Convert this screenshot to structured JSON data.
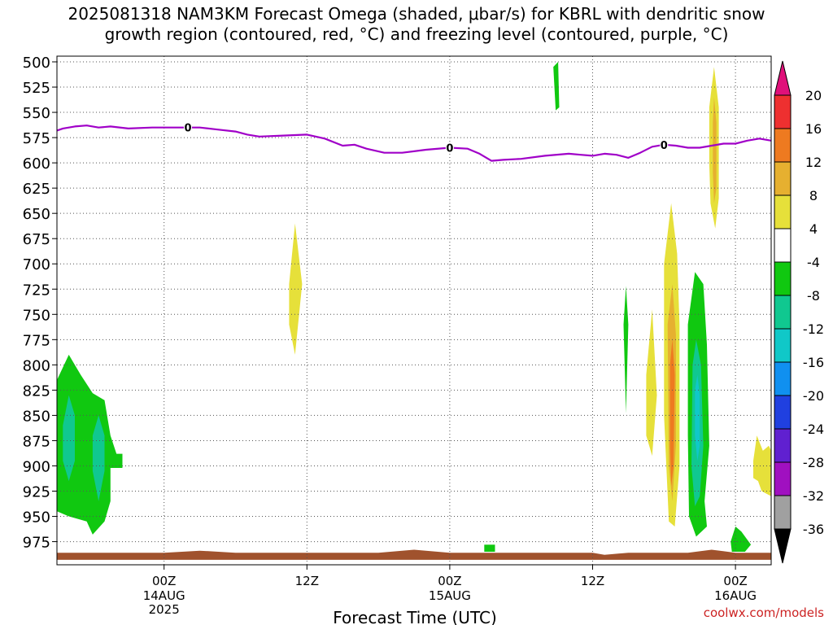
{
  "title_line1": "2025081318 NAM3KM Forecast Omega (shaded, μbar/s) for KBRL with dendritic snow",
  "title_line2": "growth region (contoured, red, °C) and freezing level (contoured, purple, °C)",
  "credit": "coolwx.com/models",
  "chart_data": {
    "type": "heatmap",
    "title": "2025081318 NAM3KM Forecast Omega (shaded, μbar/s) for KBRL with dendritic snow growth region (contoured, red, °C) and freezing level (contoured, purple, °C)",
    "xlabel": "Forecast Time (UTC)",
    "ylabel": "",
    "x_unit": "forecast hour from 2025081318",
    "xlim": [
      -3,
      57
    ],
    "ylim": [
      987,
      493
    ],
    "y_scale": "pressure (mb), inverted",
    "grid": true,
    "y_ticks": [
      500,
      525,
      550,
      575,
      600,
      625,
      650,
      675,
      700,
      725,
      750,
      775,
      800,
      825,
      850,
      875,
      900,
      925,
      950,
      975
    ],
    "x_ticks": [
      {
        "hour": 6,
        "label": "00Z",
        "sub": [
          "14AUG",
          "2025"
        ]
      },
      {
        "hour": 18,
        "label": "12Z",
        "sub": []
      },
      {
        "hour": 30,
        "label": "00Z",
        "sub": [
          "15AUG"
        ]
      },
      {
        "hour": 42,
        "label": "12Z",
        "sub": []
      },
      {
        "hour": 54,
        "label": "00Z",
        "sub": [
          "16AUG"
        ]
      }
    ],
    "freezing_level": {
      "color": "#a000c8",
      "label": "0",
      "label_hours": [
        8,
        30,
        48
      ],
      "points": [
        [
          -3,
          568
        ],
        [
          -2.5,
          566
        ],
        [
          -1.5,
          564
        ],
        [
          -0.5,
          563
        ],
        [
          0.5,
          565
        ],
        [
          1.5,
          564
        ],
        [
          3,
          566
        ],
        [
          5,
          565
        ],
        [
          7,
          565
        ],
        [
          9,
          565
        ],
        [
          10.5,
          567
        ],
        [
          12,
          569
        ],
        [
          13,
          572
        ],
        [
          14,
          574
        ],
        [
          16,
          573
        ],
        [
          18,
          572
        ],
        [
          19.5,
          576
        ],
        [
          21,
          583
        ],
        [
          22,
          582
        ],
        [
          23,
          586
        ],
        [
          24.5,
          590
        ],
        [
          26,
          590
        ],
        [
          28,
          587
        ],
        [
          30,
          585
        ],
        [
          31.5,
          586
        ],
        [
          32.5,
          591
        ],
        [
          33.5,
          598
        ],
        [
          34.5,
          597
        ],
        [
          36,
          596
        ],
        [
          38,
          593
        ],
        [
          40,
          591
        ],
        [
          41,
          592
        ],
        [
          42,
          593
        ],
        [
          43,
          591
        ],
        [
          44,
          592
        ],
        [
          45,
          595
        ],
        [
          46,
          590
        ],
        [
          47,
          584
        ],
        [
          48,
          582
        ],
        [
          49,
          583
        ],
        [
          50,
          585
        ],
        [
          51,
          585
        ],
        [
          52,
          583
        ],
        [
          53,
          581
        ],
        [
          54,
          581
        ],
        [
          55,
          578
        ],
        [
          56,
          576
        ],
        [
          57,
          578
        ]
      ]
    },
    "omega_scale": {
      "label_values": [
        20,
        16,
        12,
        8,
        4,
        -4,
        -8,
        -12,
        -16,
        -20,
        -24,
        -28,
        -32,
        -36
      ],
      "bands": [
        {
          "range": [
            16,
            20
          ],
          "color": "#ee3030"
        },
        {
          "range": [
            12,
            16
          ],
          "color": "#ee7a20"
        },
        {
          "range": [
            8,
            12
          ],
          "color": "#e6b030"
        },
        {
          "range": [
            4,
            8
          ],
          "color": "#e6e03a"
        },
        {
          "range": [
            -4,
            4
          ],
          "color": "#ffffff"
        },
        {
          "range": [
            -8,
            -4
          ],
          "color": "#10c810"
        },
        {
          "range": [
            -12,
            -8
          ],
          "color": "#10c890"
        },
        {
          "range": [
            -16,
            -12
          ],
          "color": "#10c8c8"
        },
        {
          "range": [
            -20,
            -16
          ],
          "color": "#1090f0"
        },
        {
          "range": [
            -24,
            -20
          ],
          "color": "#2040e0"
        },
        {
          "range": [
            -28,
            -24
          ],
          "color": "#6020d0"
        },
        {
          "range": [
            -32,
            -28
          ],
          "color": "#a010c0"
        },
        {
          "range": [
            -36,
            -32
          ],
          "color": "#a0a0a0"
        }
      ],
      "top_arrow_color": "#e0107a",
      "bottom_arrow_color": "#000000"
    },
    "shaded_regions": [
      {
        "value": -6,
        "color": "#10c810",
        "points": [
          [
            -3,
            815
          ],
          [
            -2,
            790
          ],
          [
            -1,
            810
          ],
          [
            0,
            828
          ],
          [
            1,
            835
          ],
          [
            1.5,
            870
          ],
          [
            2,
            888
          ],
          [
            2.5,
            888
          ],
          [
            2.5,
            902
          ],
          [
            1.5,
            902
          ],
          [
            1.5,
            935
          ],
          [
            1,
            955
          ],
          [
            0,
            968
          ],
          [
            -0.5,
            955
          ],
          [
            -2,
            950
          ],
          [
            -3,
            945
          ]
        ]
      },
      {
        "value": -9,
        "color": "#10c890",
        "points": [
          [
            -2.5,
            860
          ],
          [
            -2,
            830
          ],
          [
            -1.5,
            850
          ],
          [
            -1.5,
            895
          ],
          [
            -2,
            915
          ],
          [
            -2.5,
            895
          ]
        ]
      },
      {
        "value": -9,
        "color": "#10c890",
        "points": [
          [
            0,
            870
          ],
          [
            0.5,
            850
          ],
          [
            1,
            870
          ],
          [
            1,
            905
          ],
          [
            0.5,
            935
          ],
          [
            0,
            905
          ]
        ]
      },
      {
        "value": -6,
        "color": "#10c810",
        "points": [
          [
            38.7,
            505
          ],
          [
            39.1,
            500
          ],
          [
            39.2,
            545
          ],
          [
            38.9,
            548
          ]
        ]
      },
      {
        "value": 5,
        "color": "#e6e03a",
        "points": [
          [
            16.5,
            720
          ],
          [
            17,
            660
          ],
          [
            17.6,
            720
          ],
          [
            17,
            790
          ],
          [
            16.5,
            760
          ]
        ]
      },
      {
        "value": -6,
        "color": "#10c810",
        "points": [
          [
            44.6,
            760
          ],
          [
            44.8,
            722
          ],
          [
            45,
            760
          ],
          [
            44.8,
            848
          ]
        ]
      },
      {
        "value": 5,
        "color": "#e6e03a",
        "points": [
          [
            46.5,
            810
          ],
          [
            47,
            745
          ],
          [
            47.4,
            830
          ],
          [
            47,
            890
          ],
          [
            46.5,
            870
          ]
        ]
      },
      {
        "value": 6,
        "color": "#e6e03a",
        "points": [
          [
            48,
            700
          ],
          [
            48.6,
            640
          ],
          [
            49.1,
            690
          ],
          [
            49.3,
            760
          ],
          [
            49.3,
            900
          ],
          [
            48.9,
            960
          ],
          [
            48.4,
            955
          ],
          [
            48,
            850
          ]
        ]
      },
      {
        "value": 10,
        "color": "#e6b030",
        "points": [
          [
            48.3,
            760
          ],
          [
            48.7,
            720
          ],
          [
            49,
            770
          ],
          [
            49,
            880
          ],
          [
            48.7,
            935
          ],
          [
            48.4,
            900
          ]
        ]
      },
      {
        "value": 13,
        "color": "#ee7a20",
        "points": [
          [
            48.5,
            800
          ],
          [
            48.7,
            775
          ],
          [
            48.9,
            810
          ],
          [
            48.8,
            900
          ],
          [
            48.6,
            920
          ],
          [
            48.5,
            880
          ]
        ]
      },
      {
        "value": -6,
        "color": "#10c810",
        "points": [
          [
            50,
            760
          ],
          [
            50.6,
            708
          ],
          [
            51.3,
            720
          ],
          [
            51.6,
            780
          ],
          [
            51.8,
            880
          ],
          [
            51.4,
            935
          ],
          [
            51.6,
            960
          ],
          [
            50.7,
            970
          ],
          [
            50.1,
            950
          ],
          [
            50,
            870
          ]
        ]
      },
      {
        "value": -10,
        "color": "#10c890",
        "points": [
          [
            50.4,
            800
          ],
          [
            50.7,
            775
          ],
          [
            51.1,
            800
          ],
          [
            51.3,
            880
          ],
          [
            51,
            930
          ],
          [
            50.6,
            940
          ],
          [
            50.3,
            900
          ]
        ]
      },
      {
        "value": -14,
        "color": "#10c8c8",
        "points": [
          [
            50.6,
            825
          ],
          [
            50.8,
            810
          ],
          [
            51,
            830
          ],
          [
            51,
            880
          ],
          [
            50.8,
            895
          ],
          [
            50.6,
            870
          ]
        ]
      },
      {
        "value": 6,
        "color": "#e6e03a",
        "points": [
          [
            51.8,
            545
          ],
          [
            52.2,
            505
          ],
          [
            52.6,
            545
          ],
          [
            52.6,
            635
          ],
          [
            52.3,
            665
          ],
          [
            51.9,
            640
          ],
          [
            51.8,
            600
          ]
        ]
      },
      {
        "value": 10,
        "color": "#e6b030",
        "points": [
          [
            52.1,
            560
          ],
          [
            52.2,
            535
          ],
          [
            52.4,
            560
          ],
          [
            52.4,
            625
          ],
          [
            52.2,
            640
          ],
          [
            52.1,
            610
          ]
        ]
      },
      {
        "value": 5,
        "color": "#e6e03a",
        "points": [
          [
            55.5,
            895
          ],
          [
            55.8,
            870
          ],
          [
            56.3,
            885
          ],
          [
            56.8,
            880
          ],
          [
            57,
            885
          ],
          [
            57,
            930
          ],
          [
            56.2,
            925
          ],
          [
            55.9,
            915
          ],
          [
            55.5,
            912
          ]
        ]
      },
      {
        "value": -6,
        "color": "#10c810",
        "points": [
          [
            53.6,
            975
          ],
          [
            54,
            960
          ],
          [
            54.5,
            965
          ],
          [
            55.3,
            978
          ],
          [
            54.8,
            985
          ],
          [
            53.7,
            985
          ]
        ]
      },
      {
        "value": -6,
        "color": "#10c810",
        "points": [
          [
            32.9,
            978
          ],
          [
            33.8,
            978
          ],
          [
            33.8,
            985
          ],
          [
            32.9,
            985
          ]
        ]
      }
    ],
    "terrain_color": "#a0522d",
    "terrain_top": [
      [
        -3,
        986
      ],
      [
        6,
        986
      ],
      [
        9,
        984
      ],
      [
        12,
        986
      ],
      [
        24,
        986
      ],
      [
        27,
        983
      ],
      [
        30,
        986
      ],
      [
        42,
        986
      ],
      [
        43,
        988
      ],
      [
        45,
        986
      ],
      [
        50,
        986
      ],
      [
        52,
        983
      ],
      [
        54,
        986
      ],
      [
        57,
        986
      ]
    ],
    "terrain_bottom": 993
  }
}
